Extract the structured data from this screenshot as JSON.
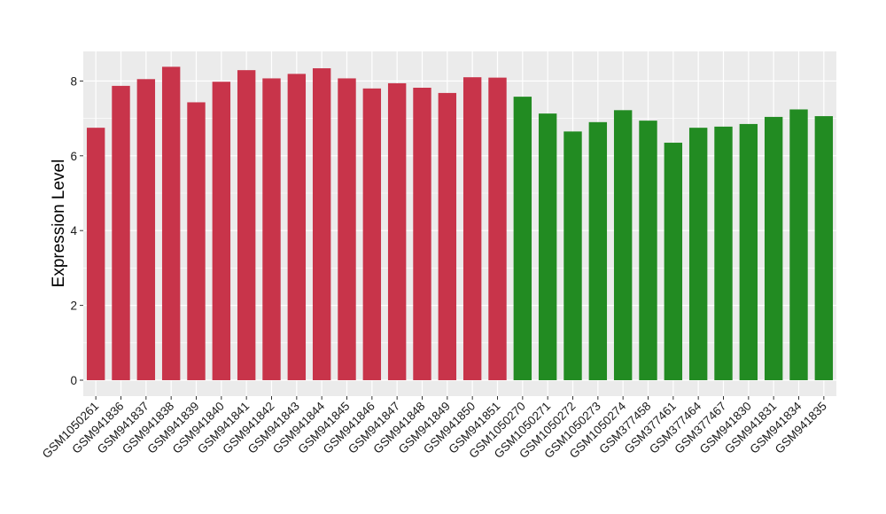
{
  "chart_data": {
    "type": "bar",
    "title": "",
    "xlabel": "",
    "ylabel": "Expression Level",
    "ylim": [
      0,
      8.8
    ],
    "yticks": [
      0,
      2,
      4,
      6,
      8
    ],
    "y_tick_labels": [
      "0",
      "2",
      "4",
      "6",
      "8"
    ],
    "grid": true,
    "legend": "none",
    "categories": [
      "GSM1050261",
      "GSM941836",
      "GSM941837",
      "GSM941838",
      "GSM941839",
      "GSM941840",
      "GSM941841",
      "GSM941842",
      "GSM941843",
      "GSM941844",
      "GSM941845",
      "GSM941846",
      "GSM941847",
      "GSM941848",
      "GSM941849",
      "GSM941850",
      "GSM941851",
      "GSM1050270",
      "GSM1050271",
      "GSM1050272",
      "GSM1050273",
      "GSM1050274",
      "GSM377458",
      "GSM377461",
      "GSM377464",
      "GSM377467",
      "GSM941830",
      "GSM941831",
      "GSM941834",
      "GSM941835"
    ],
    "values": [
      6.75,
      7.87,
      8.05,
      8.38,
      7.43,
      7.98,
      8.29,
      8.07,
      8.19,
      8.34,
      8.07,
      7.8,
      7.94,
      7.82,
      7.68,
      8.1,
      8.09,
      7.58,
      7.13,
      6.65,
      6.9,
      7.22,
      6.94,
      6.35,
      6.75,
      6.78,
      6.85,
      7.04,
      7.24,
      7.06
    ],
    "bar_colors": [
      "#c8344a",
      "#c8344a",
      "#c8344a",
      "#c8344a",
      "#c8344a",
      "#c8344a",
      "#c8344a",
      "#c8344a",
      "#c8344a",
      "#c8344a",
      "#c8344a",
      "#c8344a",
      "#c8344a",
      "#c8344a",
      "#c8344a",
      "#c8344a",
      "#c8344a",
      "#228b22",
      "#228b22",
      "#228b22",
      "#228b22",
      "#228b22",
      "#228b22",
      "#228b22",
      "#228b22",
      "#228b22",
      "#228b22",
      "#228b22",
      "#228b22",
      "#228b22"
    ],
    "panel_background": "#ebebeb",
    "gridline_color": "#ffffff"
  }
}
